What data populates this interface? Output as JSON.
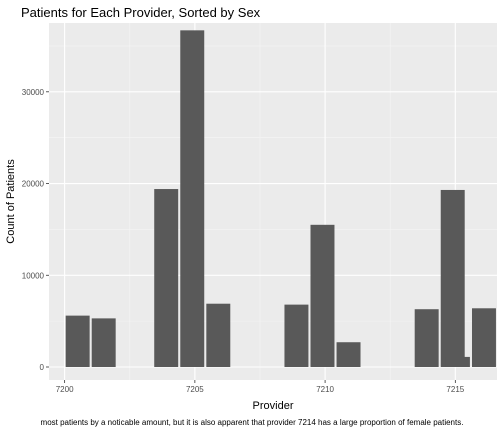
{
  "chart_data": {
    "type": "bar",
    "title": "Patients for Each Provider, Sorted by Sex",
    "xlabel": "Provider",
    "ylabel": "Count of Patients",
    "caption": "most patients by a noticable amount, but it is also apparent that provider 7214 has a large proportion of female patients.",
    "xlim": [
      7199.4,
      7216.6
    ],
    "ylim": [
      0,
      37500
    ],
    "x_ticks": [
      7200,
      7205,
      7210,
      7215
    ],
    "x_tick_labels": [
      "7200",
      "7205",
      "7210",
      "7215"
    ],
    "y_ticks": [
      0,
      10000,
      20000,
      30000
    ],
    "y_tick_labels": [
      "0",
      "10000",
      "20000",
      "30000"
    ],
    "bar_color": "#595959",
    "panel_background": "#ebebeb",
    "grid": true,
    "bars": [
      {
        "x": 7200.5,
        "value": 5600
      },
      {
        "x": 7201.5,
        "value": 5300
      },
      {
        "x": 7203.9,
        "value": 19400
      },
      {
        "x": 7204.9,
        "value": 36700
      },
      {
        "x": 7205.9,
        "value": 6900
      },
      {
        "x": 7208.9,
        "value": 6800
      },
      {
        "x": 7209.9,
        "value": 15500
      },
      {
        "x": 7210.9,
        "value": 2700
      },
      {
        "x": 7213.9,
        "value": 6300
      },
      {
        "x": 7214.9,
        "value": 19300
      },
      {
        "x": 7215.1,
        "value": 1100
      },
      {
        "x": 7216.1,
        "value": 6400
      }
    ]
  }
}
